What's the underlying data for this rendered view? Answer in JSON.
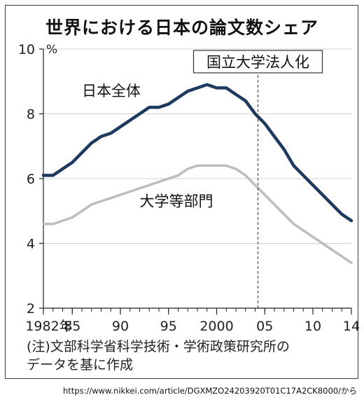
{
  "title": "世界における日本の論文数シェア",
  "note_lines": [
    "(注)文部科学省科学技術・学術政策研究所の",
    "データを基に作成"
  ],
  "source": "https://www.nikkei.com/article/DGXMZO24203920T01C17A2CK8000/から",
  "chart_data": {
    "type": "line",
    "unit": "%",
    "ylim": [
      2,
      10
    ],
    "yticks": [
      2,
      4,
      6,
      8,
      10
    ],
    "xlim": [
      1982,
      2014
    ],
    "xticks": [
      {
        "value": 1982,
        "label": "1982年"
      },
      {
        "value": 1985,
        "label": "85"
      },
      {
        "value": 1990,
        "label": "90"
      },
      {
        "value": 1995,
        "label": "95"
      },
      {
        "value": 2000,
        "label": "2000"
      },
      {
        "value": 2005,
        "label": "05"
      },
      {
        "value": 2010,
        "label": "10"
      },
      {
        "value": 2014,
        "label": "14"
      }
    ],
    "x": [
      1982,
      1983,
      1984,
      1985,
      1986,
      1987,
      1988,
      1989,
      1990,
      1991,
      1992,
      1993,
      1994,
      1995,
      1996,
      1997,
      1998,
      1999,
      2000,
      2001,
      2002,
      2003,
      2004,
      2005,
      2006,
      2007,
      2008,
      2009,
      2010,
      2011,
      2012,
      2013,
      2014
    ],
    "series": [
      {
        "name": "日本全体",
        "color": "#1f3a5f",
        "values": [
          6.1,
          6.1,
          6.3,
          6.5,
          6.8,
          7.1,
          7.3,
          7.4,
          7.6,
          7.8,
          8.0,
          8.2,
          8.2,
          8.3,
          8.5,
          8.7,
          8.8,
          8.9,
          8.8,
          8.8,
          8.6,
          8.4,
          8.0,
          7.7,
          7.3,
          6.9,
          6.4,
          6.1,
          5.8,
          5.5,
          5.2,
          4.9,
          4.7
        ]
      },
      {
        "name": "大学等部門",
        "color": "#bdbdbd",
        "values": [
          4.6,
          4.6,
          4.7,
          4.8,
          5.0,
          5.2,
          5.3,
          5.4,
          5.5,
          5.6,
          5.7,
          5.8,
          5.9,
          6.0,
          6.1,
          6.3,
          6.4,
          6.4,
          6.4,
          6.4,
          6.3,
          6.1,
          5.8,
          5.5,
          5.2,
          4.9,
          4.6,
          4.4,
          4.2,
          4.0,
          3.8,
          3.6,
          3.4
        ]
      }
    ],
    "annotation": {
      "label": "国立大学法人化",
      "x": 2004
    }
  }
}
